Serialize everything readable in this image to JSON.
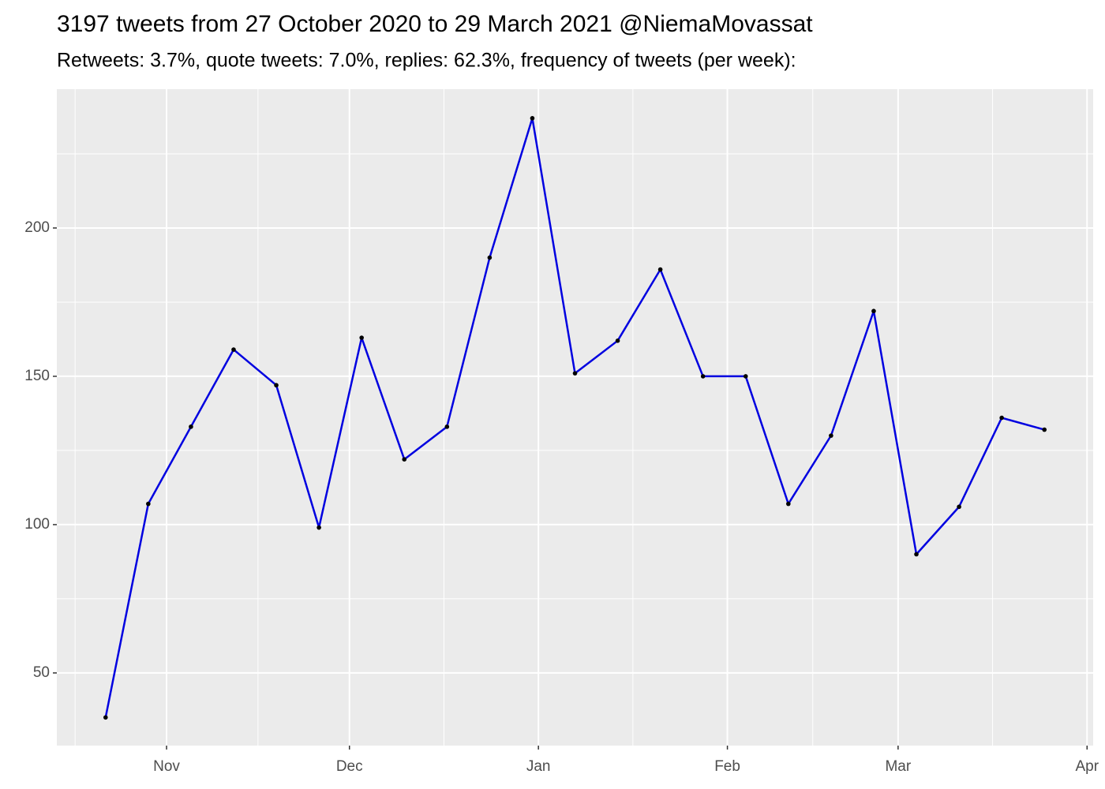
{
  "chart_data": {
    "type": "line",
    "title": "3197 tweets from 27 October 2020 to 29 March 2021 @NiemaMovassat",
    "subtitle": "Retweets: 3.7%, quote tweets: 7.0%, replies: 62.3%, frequency of tweets (per week):",
    "x": [
      "2020-10-22",
      "2020-10-29",
      "2020-11-05",
      "2020-11-12",
      "2020-11-19",
      "2020-11-26",
      "2020-12-03",
      "2020-12-10",
      "2020-12-17",
      "2020-12-24",
      "2020-12-31",
      "2021-01-07",
      "2021-01-14",
      "2021-01-21",
      "2021-01-28",
      "2021-02-04",
      "2021-02-11",
      "2021-02-18",
      "2021-02-25",
      "2021-03-04",
      "2021-03-11",
      "2021-03-18",
      "2021-03-25"
    ],
    "series": [
      {
        "color": "#0000e0",
        "values": [
          35,
          107,
          133,
          159,
          147,
          99,
          163,
          122,
          133,
          190,
          237,
          151,
          162,
          186,
          150,
          150,
          107,
          130,
          172,
          90,
          106,
          136,
          132
        ]
      }
    ],
    "xlim": [
      "2020-10-14",
      "2021-04-02"
    ],
    "xticks": [
      {
        "value": "2020-11-01",
        "label": "Nov"
      },
      {
        "value": "2020-12-01",
        "label": "Dec"
      },
      {
        "value": "2021-01-01",
        "label": "Jan"
      },
      {
        "value": "2021-02-01",
        "label": "Feb"
      },
      {
        "value": "2021-03-01",
        "label": "Mar"
      },
      {
        "value": "2021-04-01",
        "label": "Apr"
      }
    ],
    "ylim": [
      25.5,
      246.8
    ],
    "yticks": [
      50,
      100,
      150,
      200
    ],
    "grid": true
  }
}
